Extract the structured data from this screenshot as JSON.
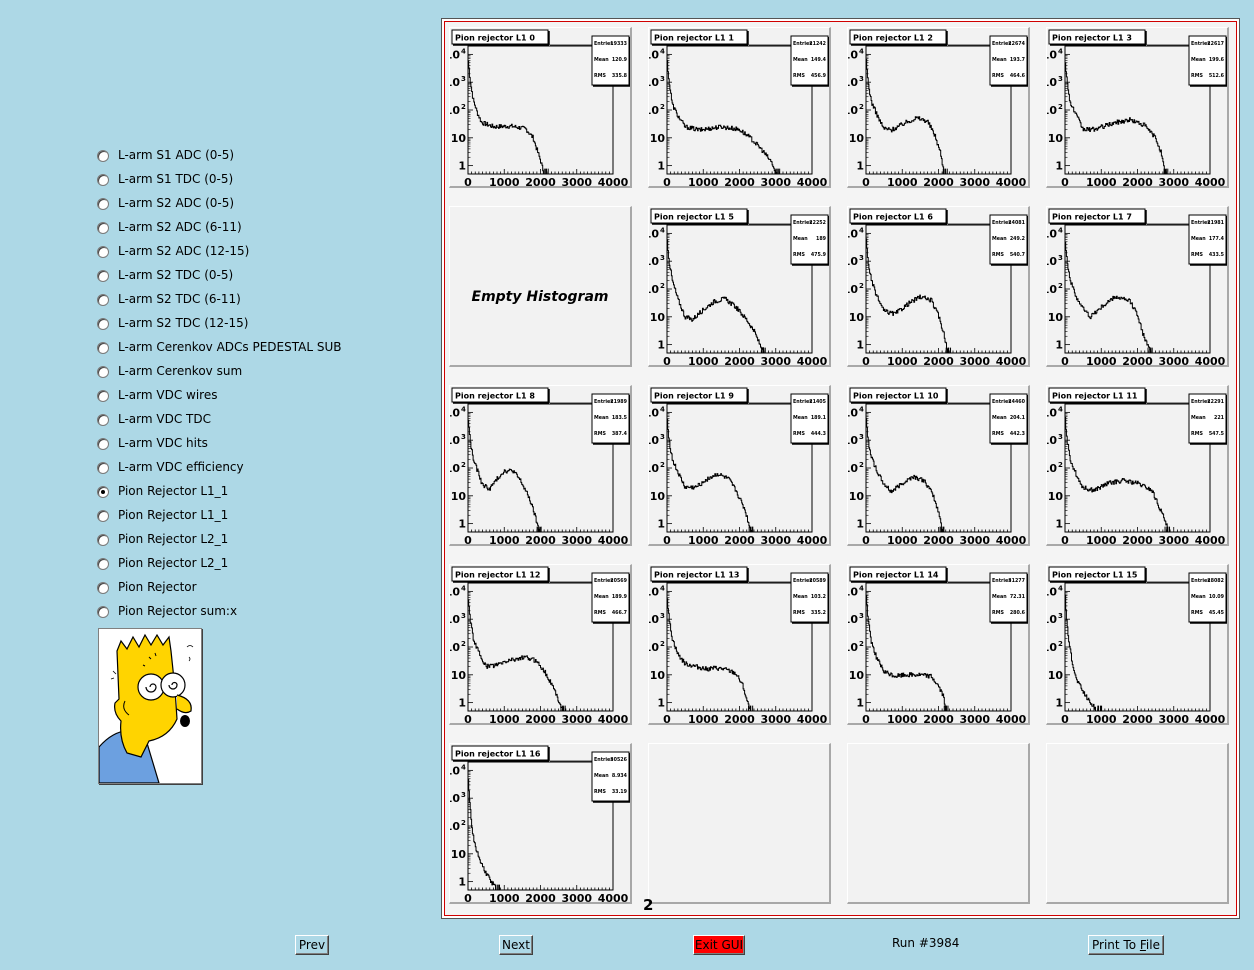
{
  "radio_options": [
    {
      "label": "L-arm S1 ADC (0-5)",
      "checked": false
    },
    {
      "label": "L-arm S1 TDC (0-5)",
      "checked": false
    },
    {
      "label": "L-arm S2 ADC (0-5)",
      "checked": false
    },
    {
      "label": "L-arm S2 ADC (6-11)",
      "checked": false
    },
    {
      "label": "L-arm S2 ADC (12-15)",
      "checked": false
    },
    {
      "label": "L-arm S2 TDC (0-5)",
      "checked": false
    },
    {
      "label": "L-arm S2 TDC (6-11)",
      "checked": false
    },
    {
      "label": "L-arm S2 TDC (12-15)",
      "checked": false
    },
    {
      "label": "L-arm Cerenkov ADCs PEDESTAL SUB",
      "checked": false
    },
    {
      "label": "L-arm Cerenkov sum",
      "checked": false
    },
    {
      "label": "L-arm VDC wires",
      "checked": false
    },
    {
      "label": "L-arm VDC TDC",
      "checked": false
    },
    {
      "label": "L-arm VDC hits",
      "checked": false
    },
    {
      "label": "L-arm VDC efficiency",
      "checked": false
    },
    {
      "label": "Pion Rejector L1_1",
      "checked": true
    },
    {
      "label": "Pion Rejector L1_1",
      "checked": false
    },
    {
      "label": "Pion Rejector L2_1",
      "checked": false
    },
    {
      "label": "Pion Rejector L2_1",
      "checked": false
    },
    {
      "label": "Pion Rejector",
      "checked": false
    },
    {
      "label": "Pion Rejector sum:x",
      "checked": false
    }
  ],
  "canvas": {
    "empty_label": "Empty Histogram",
    "stray_text": "2",
    "x_tick_labels": [
      "0",
      "1000",
      "2000",
      "3000",
      "4000"
    ],
    "y_tick_labels": [
      "1",
      "10",
      "10",
      "10",
      "10"
    ],
    "y_tick_exponents": [
      "",
      "",
      "2",
      "3",
      "4"
    ],
    "stat_labels": {
      "entries": "Entries",
      "mean": "Mean",
      "rms": "RMS"
    }
  },
  "chart_data": [
    {
      "type": "histogram",
      "title": "Pion rejector L1 0",
      "entries": "19333",
      "mean": "120.9",
      "rms": "335.8",
      "shape": "l0",
      "log_y": true,
      "xlim": [
        0,
        4000
      ],
      "ylim": [
        0.5,
        20000
      ]
    },
    {
      "type": "histogram",
      "title": "Pion rejector L1 1",
      "entries": "21242",
      "mean": "149.4",
      "rms": "456.9",
      "shape": "l1",
      "log_y": true,
      "xlim": [
        0,
        4000
      ],
      "ylim": [
        0.5,
        20000
      ]
    },
    {
      "type": "histogram",
      "title": "Pion rejector L1 2",
      "entries": "22674",
      "mean": "193.7",
      "rms": "464.6",
      "shape": "l2",
      "log_y": true,
      "xlim": [
        0,
        4000
      ],
      "ylim": [
        0.5,
        20000
      ]
    },
    {
      "type": "histogram",
      "title": "Pion rejector L1 3",
      "entries": "22617",
      "mean": "199.6",
      "rms": "512.6",
      "shape": "l3",
      "log_y": true,
      "xlim": [
        0,
        4000
      ],
      "ylim": [
        0.5,
        20000
      ]
    },
    {
      "type": "empty"
    },
    {
      "type": "histogram",
      "title": "Pion rejector L1 5",
      "entries": "22252",
      "mean": "189",
      "rms": "475.9",
      "shape": "l5",
      "log_y": true,
      "xlim": [
        0,
        4000
      ],
      "ylim": [
        0.5,
        20000
      ]
    },
    {
      "type": "histogram",
      "title": "Pion rejector L1 6",
      "entries": "24081",
      "mean": "249.2",
      "rms": "540.7",
      "shape": "l6",
      "log_y": true,
      "xlim": [
        0,
        4000
      ],
      "ylim": [
        0.5,
        20000
      ]
    },
    {
      "type": "histogram",
      "title": "Pion rejector L1 7",
      "entries": "21981",
      "mean": "177.4",
      "rms": "433.5",
      "shape": "l7",
      "log_y": true,
      "xlim": [
        0,
        4000
      ],
      "ylim": [
        0.5,
        20000
      ]
    },
    {
      "type": "histogram",
      "title": "Pion rejector L1 8",
      "entries": "21989",
      "mean": "183.5",
      "rms": "387.4",
      "shape": "l8",
      "log_y": true,
      "xlim": [
        0,
        4000
      ],
      "ylim": [
        0.5,
        20000
      ]
    },
    {
      "type": "histogram",
      "title": "Pion rejector L1 9",
      "entries": "21405",
      "mean": "189.1",
      "rms": "444.3",
      "shape": "l9",
      "log_y": true,
      "xlim": [
        0,
        4000
      ],
      "ylim": [
        0.5,
        20000
      ]
    },
    {
      "type": "histogram",
      "title": "Pion rejector L1 10",
      "entries": "24460",
      "mean": "204.1",
      "rms": "442.3",
      "shape": "l10",
      "log_y": true,
      "xlim": [
        0,
        4000
      ],
      "ylim": [
        0.5,
        20000
      ]
    },
    {
      "type": "histogram",
      "title": "Pion rejector L1 11",
      "entries": "22291",
      "mean": "221",
      "rms": "547.5",
      "shape": "l11",
      "log_y": true,
      "xlim": [
        0,
        4000
      ],
      "ylim": [
        0.5,
        20000
      ]
    },
    {
      "type": "histogram",
      "title": "Pion rejector L1 12",
      "entries": "20569",
      "mean": "189.9",
      "rms": "466.7",
      "shape": "l12",
      "log_y": true,
      "xlim": [
        0,
        4000
      ],
      "ylim": [
        0.5,
        20000
      ]
    },
    {
      "type": "histogram",
      "title": "Pion rejector L1 13",
      "entries": "20589",
      "mean": "103.2",
      "rms": "335.2",
      "shape": "l13",
      "log_y": true,
      "xlim": [
        0,
        4000
      ],
      "ylim": [
        0.5,
        20000
      ]
    },
    {
      "type": "histogram",
      "title": "Pion rejector L1 14",
      "entries": "31277",
      "mean": "72.31",
      "rms": "280.6",
      "shape": "l14",
      "log_y": true,
      "xlim": [
        0,
        4000
      ],
      "ylim": [
        0.5,
        20000
      ]
    },
    {
      "type": "histogram",
      "title": "Pion rejector L1 15",
      "entries": "28082",
      "mean": "10.09",
      "rms": "45.45",
      "shape": "l15",
      "log_y": true,
      "xlim": [
        0,
        4000
      ],
      "ylim": [
        0.5,
        20000
      ]
    },
    {
      "type": "histogram",
      "title": "Pion rejector L1 16",
      "entries": "30526",
      "mean": "8.934",
      "rms": "33.19",
      "shape": "l16",
      "log_y": true,
      "xlim": [
        0,
        4000
      ],
      "ylim": [
        0.5,
        20000
      ]
    },
    {
      "type": "blank"
    },
    {
      "type": "blank"
    },
    {
      "type": "blank"
    }
  ],
  "buttons": {
    "prev": "Prev",
    "next": "Next",
    "exit": "Exit GUI",
    "print_prefix": "Print To ",
    "print_underlined": "F",
    "print_suffix": "ile"
  },
  "run_label": "Run #3984",
  "colors": {
    "background": "#add8e6",
    "exit_button": "#ff0000",
    "canvas_border": "#d00000"
  }
}
